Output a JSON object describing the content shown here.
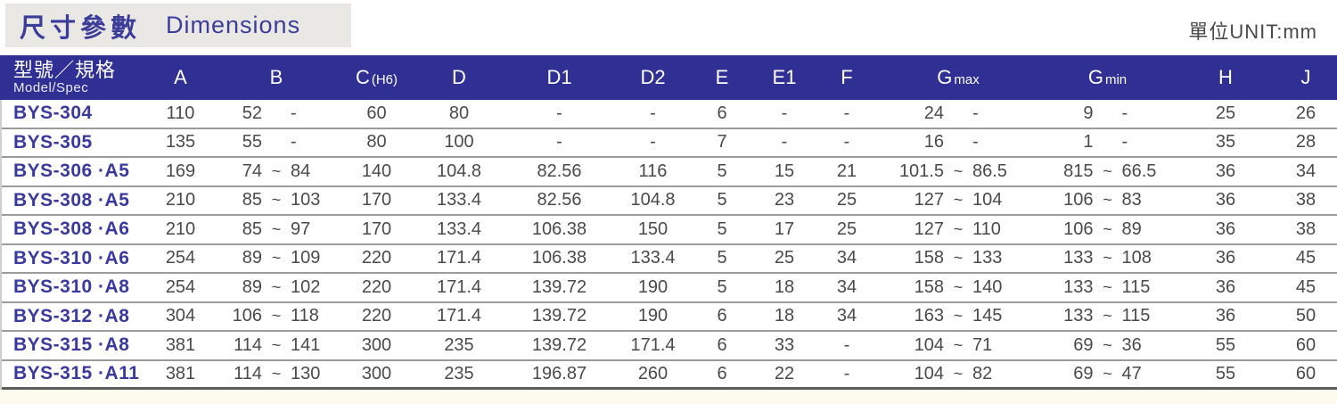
{
  "header": {
    "title_zh": "尺寸參數",
    "title_en": "Dimensions",
    "unit_label": "單位UNIT:mm"
  },
  "colors": {
    "header_bar": "#2f2f94",
    "title_text": "#3c3c99",
    "model_text": "#3a3a9c",
    "data_text": "#4a4a4a",
    "banner_bg": "#e9e8e5",
    "sep": "#9b9b9b"
  },
  "table": {
    "model_header": {
      "zh": "型號／規格",
      "en": "Model/Spec"
    },
    "columns": [
      {
        "label": "A",
        "sub": ""
      },
      {
        "label": "B",
        "sub": ""
      },
      {
        "label": "C",
        "sub": "(H6)"
      },
      {
        "label": "D",
        "sub": ""
      },
      {
        "label": "D1",
        "sub": ""
      },
      {
        "label": "D2",
        "sub": ""
      },
      {
        "label": "E",
        "sub": ""
      },
      {
        "label": "E1",
        "sub": ""
      },
      {
        "label": "F",
        "sub": ""
      },
      {
        "label": "G",
        "sub": "max"
      },
      {
        "label": "G",
        "sub": "min"
      },
      {
        "label": "H",
        "sub": ""
      },
      {
        "label": "J",
        "sub": ""
      }
    ],
    "rows": [
      {
        "model": "BYS-304",
        "a": "110",
        "b": [
          "52",
          "",
          "-"
        ],
        "c": "60",
        "d": "80",
        "d1": "-",
        "d2": "-",
        "e": "6",
        "e1": "-",
        "f": "-",
        "gmax": [
          "24",
          "",
          "-"
        ],
        "gmin": [
          "9",
          "",
          "-"
        ],
        "h": "25",
        "j": "26"
      },
      {
        "model": "BYS-305",
        "a": "135",
        "b": [
          "55",
          "",
          "-"
        ],
        "c": "80",
        "d": "100",
        "d1": "-",
        "d2": "-",
        "e": "7",
        "e1": "-",
        "f": "-",
        "gmax": [
          "16",
          "",
          "-"
        ],
        "gmin": [
          "1",
          "",
          "-"
        ],
        "h": "35",
        "j": "28"
      },
      {
        "model": "BYS-306 ·A5",
        "a": "169",
        "b": [
          "74",
          "~",
          "84"
        ],
        "c": "140",
        "d": "104.8",
        "d1": "82.56",
        "d2": "116",
        "e": "5",
        "e1": "15",
        "f": "21",
        "gmax": [
          "101.5",
          "~",
          "86.5"
        ],
        "gmin": [
          "815",
          "~",
          "66.5"
        ],
        "h": "36",
        "j": "34"
      },
      {
        "model": "BYS-308 ·A5",
        "a": "210",
        "b": [
          "85",
          "~",
          "103"
        ],
        "c": "170",
        "d": "133.4",
        "d1": "82.56",
        "d2": "104.8",
        "e": "5",
        "e1": "23",
        "f": "25",
        "gmax": [
          "127",
          "~",
          "104"
        ],
        "gmin": [
          "106",
          "~",
          "83"
        ],
        "h": "36",
        "j": "38"
      },
      {
        "model": "BYS-308 ·A6",
        "a": "210",
        "b": [
          "85",
          "~",
          "97"
        ],
        "c": "170",
        "d": "133.4",
        "d1": "106.38",
        "d2": "150",
        "e": "5",
        "e1": "17",
        "f": "25",
        "gmax": [
          "127",
          "~",
          "110"
        ],
        "gmin": [
          "106",
          "~",
          "89"
        ],
        "h": "36",
        "j": "38"
      },
      {
        "model": "BYS-310 ·A6",
        "a": "254",
        "b": [
          "89",
          "~",
          "109"
        ],
        "c": "220",
        "d": "171.4",
        "d1": "106.38",
        "d2": "133.4",
        "e": "5",
        "e1": "25",
        "f": "34",
        "gmax": [
          "158",
          "~",
          "133"
        ],
        "gmin": [
          "133",
          "~",
          "108"
        ],
        "h": "36",
        "j": "45"
      },
      {
        "model": "BYS-310 ·A8",
        "a": "254",
        "b": [
          "89",
          "~",
          "102"
        ],
        "c": "220",
        "d": "171.4",
        "d1": "139.72",
        "d2": "190",
        "e": "5",
        "e1": "18",
        "f": "34",
        "gmax": [
          "158",
          "~",
          "140"
        ],
        "gmin": [
          "133",
          "~",
          "115"
        ],
        "h": "36",
        "j": "45"
      },
      {
        "model": "BYS-312 ·A8",
        "a": "304",
        "b": [
          "106",
          "~",
          "118"
        ],
        "c": "220",
        "d": "171.4",
        "d1": "139.72",
        "d2": "190",
        "e": "6",
        "e1": "18",
        "f": "34",
        "gmax": [
          "163",
          "~",
          "145"
        ],
        "gmin": [
          "133",
          "~",
          "115"
        ],
        "h": "36",
        "j": "50"
      },
      {
        "model": "BYS-315 ·A8",
        "a": "381",
        "b": [
          "114",
          "~",
          "141"
        ],
        "c": "300",
        "d": "235",
        "d1": "139.72",
        "d2": "171.4",
        "e": "6",
        "e1": "33",
        "f": "-",
        "gmax": [
          "104",
          "~",
          "71"
        ],
        "gmin": [
          "69",
          "~",
          "36"
        ],
        "h": "55",
        "j": "60"
      },
      {
        "model": "BYS-315 ·A11",
        "a": "381",
        "b": [
          "114",
          "~",
          "130"
        ],
        "c": "300",
        "d": "235",
        "d1": "196.87",
        "d2": "260",
        "e": "6",
        "e1": "22",
        "f": "-",
        "gmax": [
          "104",
          "~",
          "82"
        ],
        "gmin": [
          "69",
          "~",
          "47"
        ],
        "h": "55",
        "j": "60"
      }
    ]
  }
}
